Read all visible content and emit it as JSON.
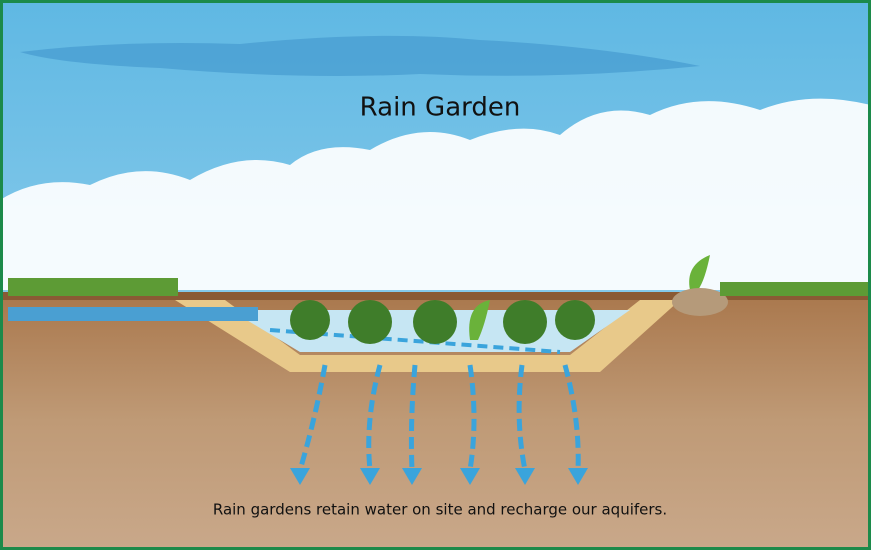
{
  "title": "Rain Garden",
  "caption": "Rain gardens retain water on site and recharge our aquifers."
}
